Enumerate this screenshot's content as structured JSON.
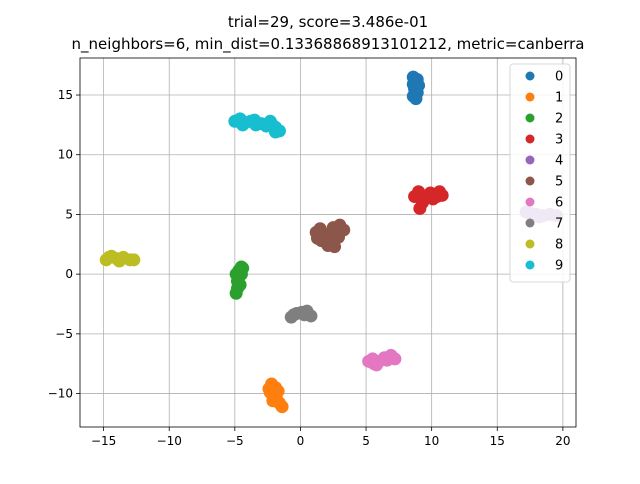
{
  "chart_data": {
    "type": "scatter",
    "title": "trial=29, score=3.486e-01",
    "subtitle": "n_neighbors=6, min_dist=0.13368868913101212, metric=canberra",
    "xlim": [
      -16.8,
      21.0
    ],
    "ylim": [
      -12.8,
      18.1
    ],
    "xticks": [
      -15,
      -10,
      -5,
      0,
      5,
      10,
      15,
      20
    ],
    "xtick_labels": [
      "−15",
      "−10",
      "−5",
      "0",
      "5",
      "10",
      "15",
      "20"
    ],
    "yticks": [
      -10,
      -5,
      0,
      5,
      10,
      15
    ],
    "ytick_labels": [
      "−10",
      "−5",
      "0",
      "5",
      "10",
      "15"
    ],
    "grid": true,
    "legend_position": "top-right",
    "series": [
      {
        "name": "0",
        "color": "#1f77b4",
        "points": [
          [
            8.6,
            16.5
          ],
          [
            8.9,
            16.3
          ],
          [
            8.7,
            16.0
          ],
          [
            9.0,
            15.8
          ],
          [
            8.7,
            15.5
          ],
          [
            8.9,
            15.2
          ],
          [
            8.6,
            14.9
          ],
          [
            8.8,
            14.7
          ],
          [
            8.8,
            15.6
          ],
          [
            8.6,
            15.9
          ]
        ]
      },
      {
        "name": "1",
        "color": "#ff7f0e",
        "points": [
          [
            -2.2,
            -9.2
          ],
          [
            -1.9,
            -9.5
          ],
          [
            -2.3,
            -9.9
          ],
          [
            -2.0,
            -10.2
          ],
          [
            -1.8,
            -10.5
          ],
          [
            -1.6,
            -10.8
          ],
          [
            -1.4,
            -11.1
          ],
          [
            -2.1,
            -10.6
          ],
          [
            -2.4,
            -9.6
          ],
          [
            -1.7,
            -9.8
          ]
        ]
      },
      {
        "name": "2",
        "color": "#2ca02c",
        "points": [
          [
            -4.5,
            0.6
          ],
          [
            -4.7,
            0.3
          ],
          [
            -4.9,
            0.0
          ],
          [
            -4.7,
            -0.3
          ],
          [
            -4.8,
            -0.6
          ],
          [
            -4.6,
            -0.9
          ],
          [
            -4.8,
            -1.2
          ],
          [
            -4.9,
            -1.6
          ],
          [
            -4.5,
            0.0
          ],
          [
            -4.4,
            0.5
          ]
        ]
      },
      {
        "name": "3",
        "color": "#d62728",
        "points": [
          [
            8.7,
            6.5
          ],
          [
            9.1,
            6.7
          ],
          [
            9.5,
            6.4
          ],
          [
            9.9,
            6.8
          ],
          [
            10.4,
            6.5
          ],
          [
            10.8,
            6.6
          ],
          [
            9.3,
            6.0
          ],
          [
            9.1,
            5.5
          ],
          [
            10.1,
            6.3
          ],
          [
            9.0,
            6.9
          ],
          [
            10.6,
            6.9
          ]
        ]
      },
      {
        "name": "4",
        "color": "#9467bd",
        "points": [
          [
            17.5,
            5.1
          ],
          [
            18.0,
            5.0
          ],
          [
            18.5,
            4.9
          ],
          [
            19.0,
            5.0
          ],
          [
            19.5,
            4.9
          ],
          [
            18.2,
            4.8
          ],
          [
            17.2,
            5.2
          ]
        ]
      },
      {
        "name": "5",
        "color": "#8c564b",
        "points": [
          [
            1.2,
            3.5
          ],
          [
            1.5,
            3.8
          ],
          [
            2.0,
            3.3
          ],
          [
            2.5,
            3.9
          ],
          [
            3.0,
            4.1
          ],
          [
            3.3,
            3.7
          ],
          [
            1.6,
            2.8
          ],
          [
            2.1,
            2.4
          ],
          [
            2.6,
            2.3
          ],
          [
            2.9,
            3.1
          ],
          [
            1.3,
            3.0
          ],
          [
            2.3,
            2.9
          ]
        ]
      },
      {
        "name": "6",
        "color": "#e377c2",
        "points": [
          [
            5.2,
            -7.3
          ],
          [
            5.6,
            -7.5
          ],
          [
            6.0,
            -7.3
          ],
          [
            6.4,
            -7.0
          ],
          [
            6.9,
            -6.8
          ],
          [
            7.2,
            -7.1
          ],
          [
            5.8,
            -7.6
          ],
          [
            6.6,
            -7.2
          ],
          [
            5.5,
            -7.1
          ]
        ]
      },
      {
        "name": "7",
        "color": "#7f7f7f",
        "points": [
          [
            -0.7,
            -3.6
          ],
          [
            -0.3,
            -3.3
          ],
          [
            0.1,
            -3.2
          ],
          [
            0.5,
            -3.1
          ],
          [
            0.8,
            -3.5
          ],
          [
            0.3,
            -3.4
          ],
          [
            -0.5,
            -3.4
          ]
        ]
      },
      {
        "name": "8",
        "color": "#bcbd22",
        "points": [
          [
            -14.8,
            1.2
          ],
          [
            -14.4,
            1.5
          ],
          [
            -14.0,
            1.3
          ],
          [
            -13.5,
            1.4
          ],
          [
            -13.0,
            1.2
          ],
          [
            -12.7,
            1.2
          ],
          [
            -14.6,
            1.4
          ],
          [
            -13.8,
            1.1
          ]
        ]
      },
      {
        "name": "9",
        "color": "#17becf",
        "points": [
          [
            -5.0,
            12.8
          ],
          [
            -4.6,
            13.0
          ],
          [
            -4.2,
            12.7
          ],
          [
            -3.8,
            12.8
          ],
          [
            -3.4,
            12.5
          ],
          [
            -3.0,
            12.6
          ],
          [
            -2.6,
            12.4
          ],
          [
            -2.2,
            12.6
          ],
          [
            -1.9,
            12.3
          ],
          [
            -1.6,
            12.0
          ],
          [
            -1.9,
            11.9
          ],
          [
            -4.4,
            12.5
          ],
          [
            -3.5,
            12.9
          ],
          [
            -2.3,
            12.8
          ]
        ]
      }
    ]
  }
}
